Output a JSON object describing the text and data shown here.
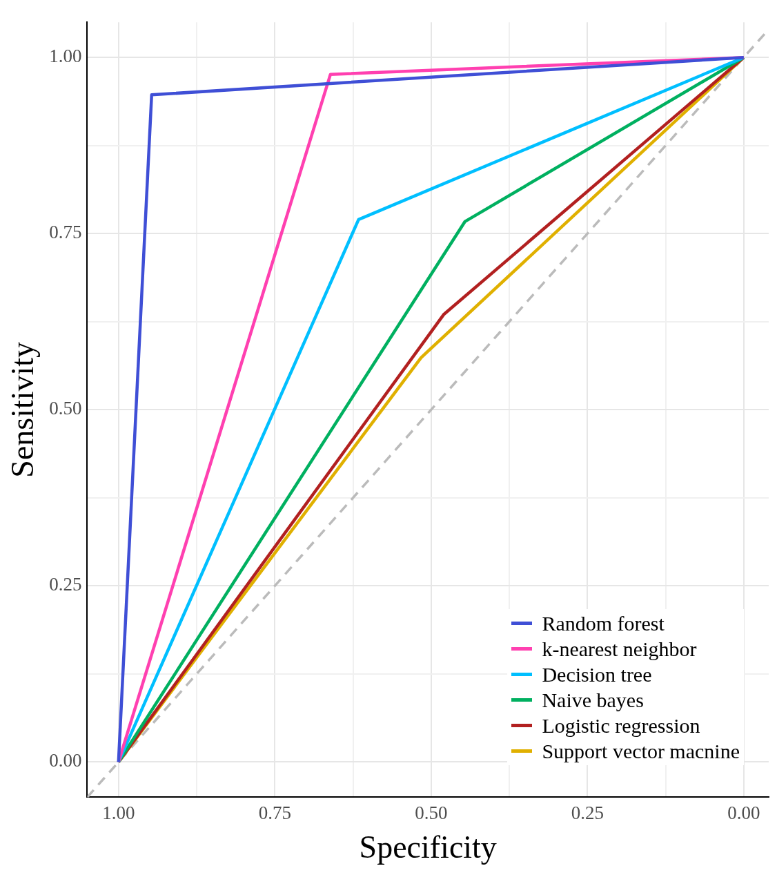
{
  "chart_data": {
    "type": "line",
    "xlabel": "Specificity",
    "ylabel": "Sensitivity",
    "xlim": [
      1.05,
      -0.04
    ],
    "ylim": [
      -0.05,
      1.05
    ],
    "xticks": [
      {
        "value": 1,
        "label": "1.00"
      },
      {
        "value": 0.875,
        "label": null
      },
      {
        "value": 0.75,
        "label": "0.75"
      },
      {
        "value": 0.625,
        "label": null
      },
      {
        "value": 0.5,
        "label": "0.50"
      },
      {
        "value": 0.375,
        "label": null
      },
      {
        "value": 0.25,
        "label": "0.25"
      },
      {
        "value": 0.125,
        "label": null
      },
      {
        "value": 0,
        "label": "0.00"
      }
    ],
    "yticks": [
      {
        "value": 0,
        "label": "0.00"
      },
      {
        "value": 0.125,
        "label": null
      },
      {
        "value": 0.25,
        "label": "0.25"
      },
      {
        "value": 0.375,
        "label": null
      },
      {
        "value": 0.5,
        "label": "0.50"
      },
      {
        "value": 0.625,
        "label": null
      },
      {
        "value": 0.75,
        "label": "0.75"
      },
      {
        "value": 0.875,
        "label": null
      },
      {
        "value": 1,
        "label": "1.00"
      }
    ],
    "grid": true,
    "legend": "bottom right",
    "marker": "none",
    "series": [
      {
        "name": "Random forest",
        "color": "#3f4fd6",
        "x": [
          1,
          0.947,
          0
        ],
        "values": [
          0,
          0.947,
          1
        ]
      },
      {
        "name": "k-nearest neighbor",
        "color": "#ff40b0",
        "x": [
          1,
          0.661,
          0
        ],
        "values": [
          0,
          0.976,
          1
        ]
      },
      {
        "name": "Decision tree",
        "color": "#00bfff",
        "x": [
          1,
          0.616,
          0
        ],
        "values": [
          0,
          0.77,
          1
        ]
      },
      {
        "name": "Naive bayes",
        "color": "#00b060",
        "x": [
          1,
          0.446,
          0
        ],
        "values": [
          0,
          0.767,
          1
        ]
      },
      {
        "name": "Logistic regression",
        "color": "#b22020",
        "x": [
          1,
          0.48,
          0
        ],
        "values": [
          0,
          0.635,
          1
        ]
      },
      {
        "name": "Support vector macnine",
        "color": "#e0b000",
        "x": [
          1,
          0.516,
          0
        ],
        "values": [
          0,
          0.574,
          1
        ]
      },
      {
        "color": "#bbbbbb",
        "line_style": "dashed",
        "x": [
          1.05,
          -0.04
        ],
        "values": [
          -0.05,
          1.04
        ]
      }
    ]
  }
}
